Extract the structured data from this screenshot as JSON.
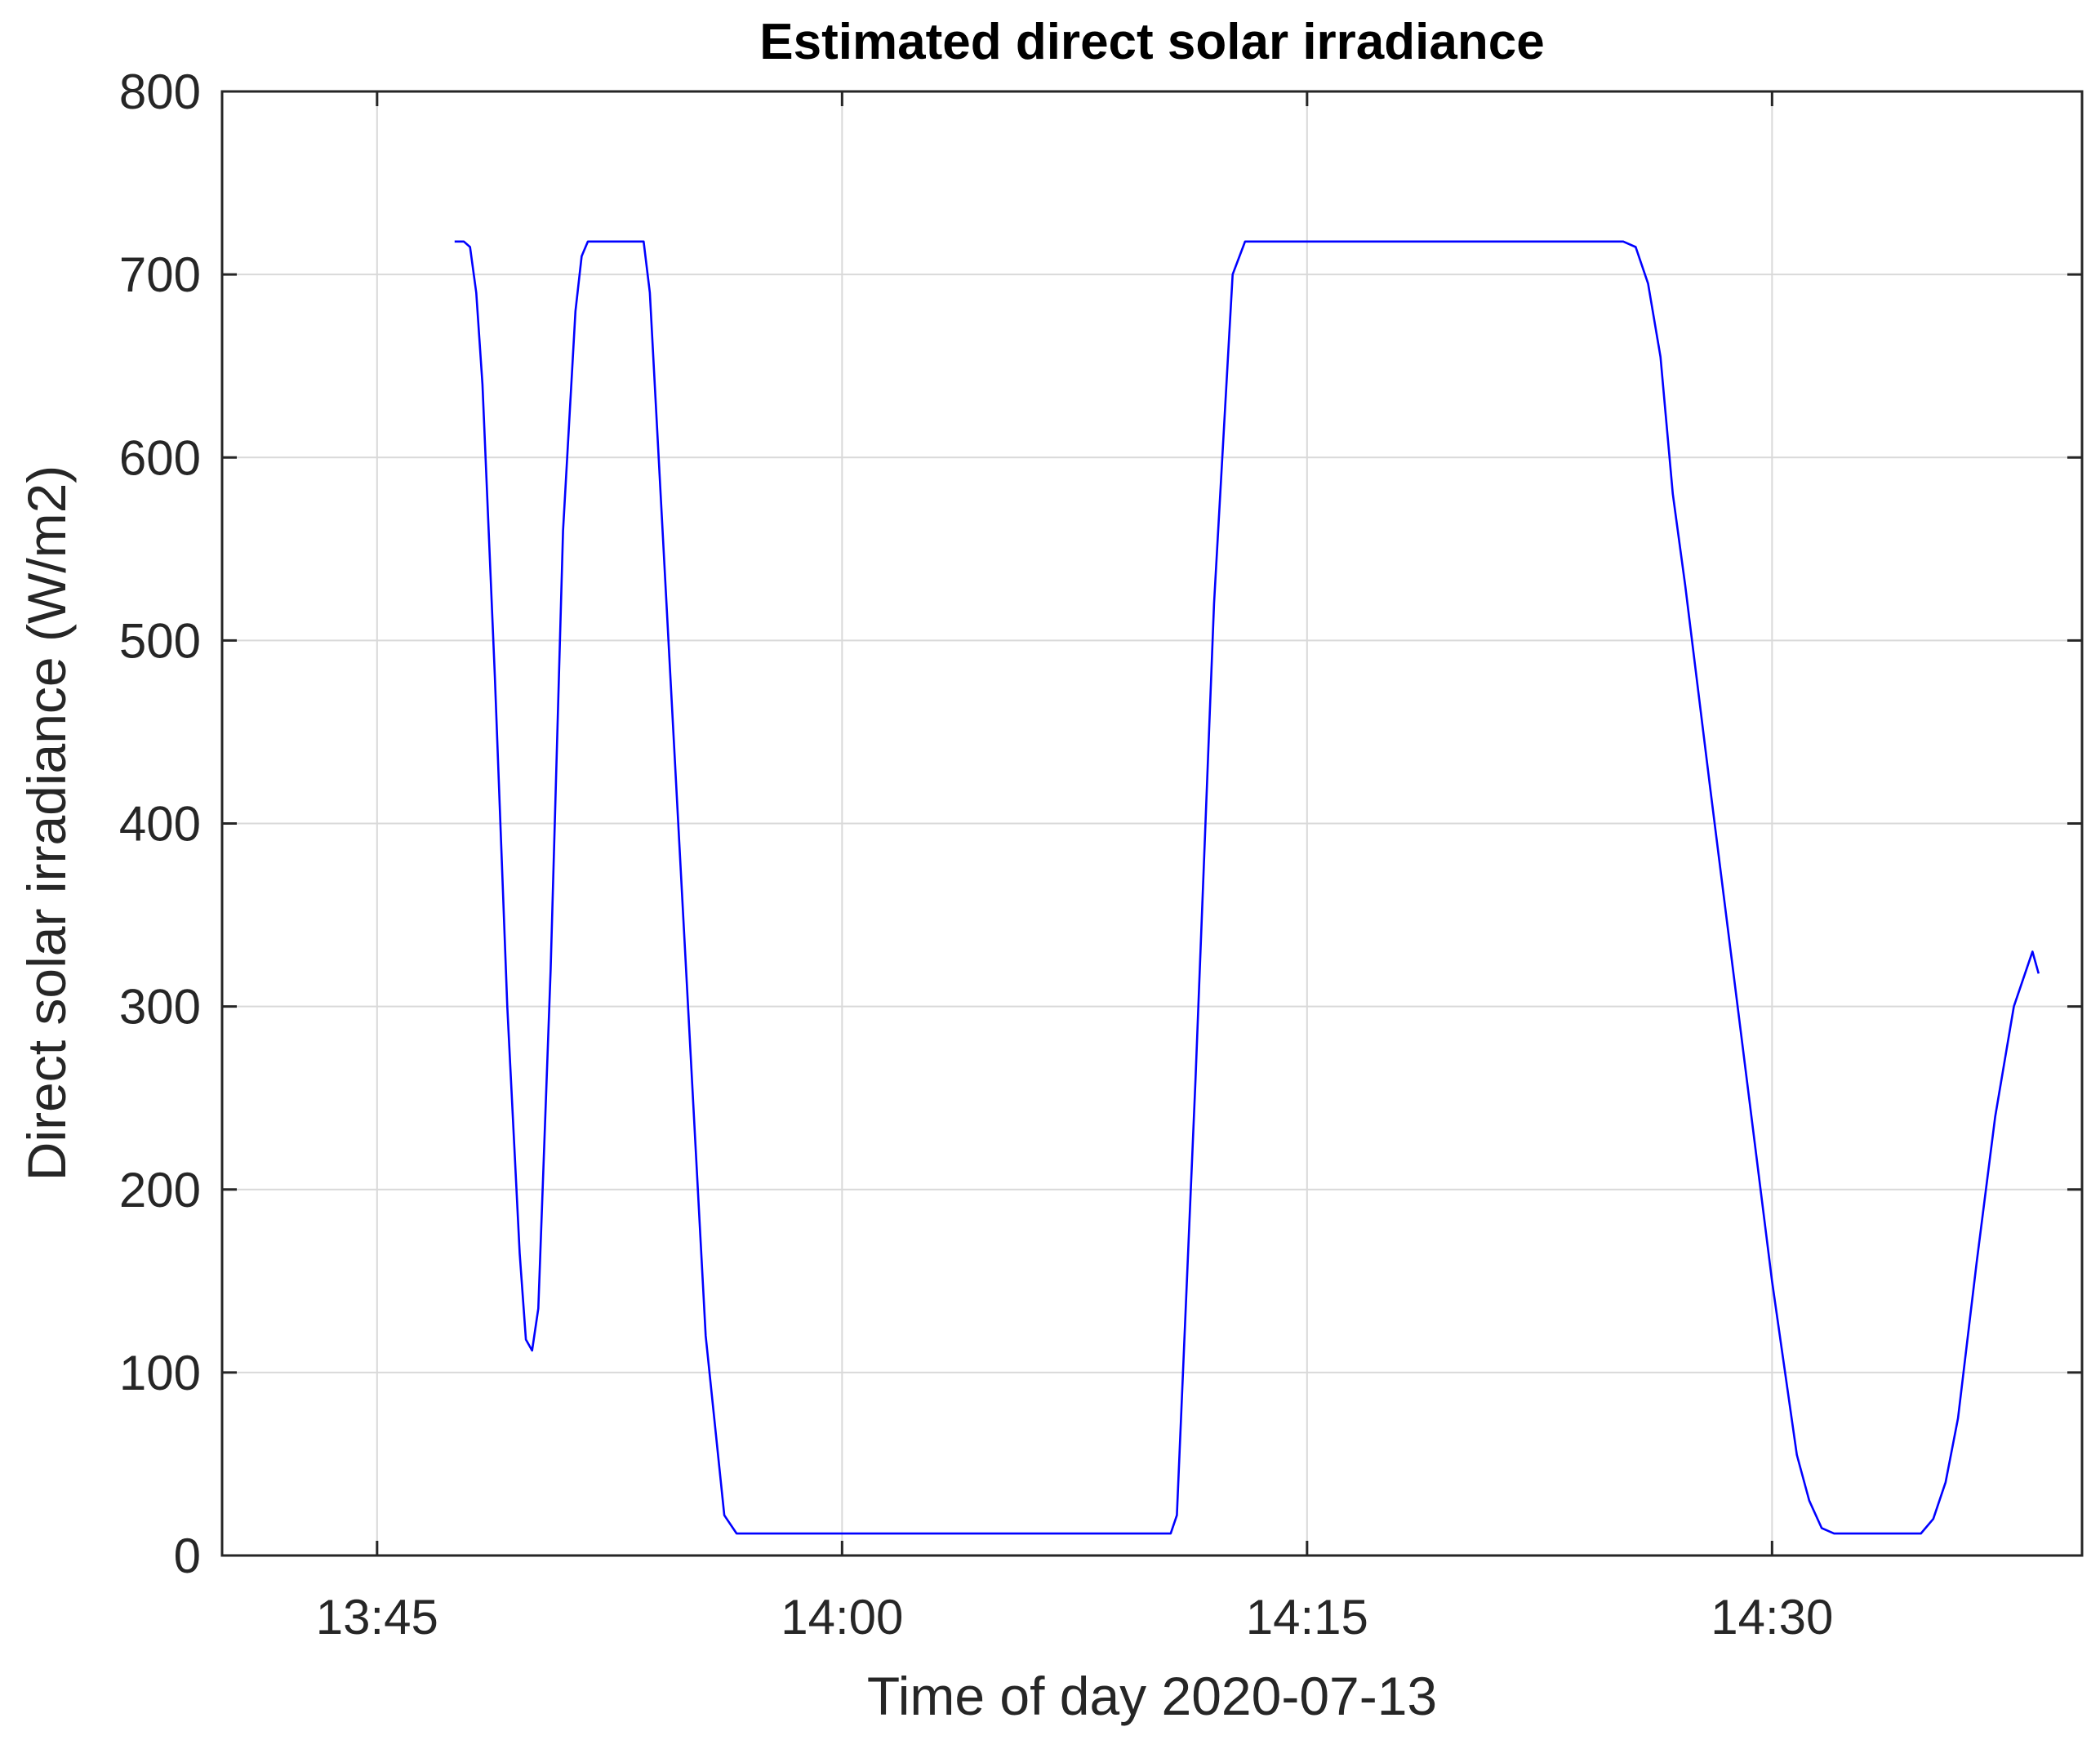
{
  "chart_data": {
    "type": "line",
    "title": "Estimated direct solar irradiance",
    "xlabel": "Time of day 2020-07-13",
    "ylabel": "Direct solar irradiance (W/m2)",
    "xlim": [
      "13:40",
      "14:40"
    ],
    "ylim": [
      0,
      800
    ],
    "xticks": [
      "13:45",
      "14:00",
      "14:15",
      "14:30"
    ],
    "yticks": [
      "0",
      "100",
      "200",
      "300",
      "400",
      "500",
      "600",
      "700",
      "800"
    ],
    "grid": true,
    "line_color": "#0000ff",
    "series": [
      {
        "x": [
          "13:47:30",
          "13:47:48",
          "13:48:00",
          "13:48:12",
          "13:48:24",
          "13:48:48",
          "13:49:12",
          "13:49:36",
          "13:49:48",
          "13:50:00",
          "13:50:12",
          "13:50:36",
          "13:51:00",
          "13:51:24",
          "13:51:36",
          "13:51:48",
          "13:52:00",
          "13:52:12",
          "13:52:36",
          "13:53:00",
          "13:53:24",
          "13:53:36",
          "13:53:48",
          "13:54:24",
          "13:55:00",
          "13:55:36",
          "13:56:12",
          "13:56:36",
          "13:56:48",
          "14:10:36",
          "14:10:48",
          "14:11:24",
          "14:12:00",
          "14:12:36",
          "14:13:00",
          "14:13:12",
          "14:25:12",
          "14:25:36",
          "14:26:00",
          "14:26:24",
          "14:26:48",
          "14:27:12",
          "14:28:00",
          "14:29:00",
          "14:30:00",
          "14:30:48",
          "14:31:12",
          "14:31:36",
          "14:32:00",
          "14:32:24",
          "14:34:48",
          "14:35:12",
          "14:35:36",
          "14:36:00",
          "14:36:36",
          "14:37:12",
          "14:37:48",
          "14:38:24",
          "14:38:36"
        ],
        "y": [
          718,
          718,
          715,
          690,
          640,
          480,
          300,
          165,
          118,
          112,
          135,
          320,
          560,
          680,
          710,
          718,
          718,
          718,
          718,
          718,
          718,
          718,
          690,
          500,
          310,
          120,
          22,
          12,
          12,
          12,
          22,
          260,
          520,
          700,
          718,
          718,
          718,
          715,
          695,
          655,
          580,
          530,
          420,
          285,
          150,
          55,
          30,
          15,
          12,
          12,
          12,
          20,
          40,
          75,
          160,
          240,
          300,
          330,
          318
        ]
      }
    ]
  }
}
